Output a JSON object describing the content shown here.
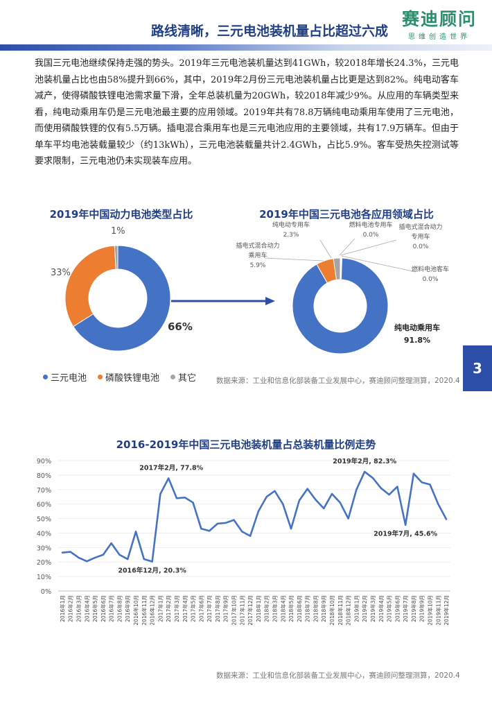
{
  "header": {
    "title": "路线清晰，三元电池装机量占比超过六成",
    "logo_main": "赛迪顾问",
    "logo_sub": "思维创造世界"
  },
  "intro_text": "我国三元电池继续保持走强的势头。2019年三元电池装机量达到41GWh，较2018年增长24.3%，三元电池装机量占比也由58%提升到66%，其中，2019年2月份三元电池装机量占比更是达到82%。纯电动客车减产，使得磷酸铁锂电池需求量下滑，全年总装机量为20GWh，较2018年减少9%。从应用的车辆类型来看，纯电动乘用车仍是三元电池最主要的应用领域。2019年共有78.8万辆纯电动乘用车使用了三元电池，而使用磷酸铁锂的仅有5.5万辆。插电混合乘用车也是三元电池应用的主要领域，共有17.9万辆车。但由于单车平均电池装载量较少（约13kWh），三元电池装载量共计2.4GWh，占比5.9%。客车受热失控测试等要求限制，三元电池仍未实现装车应用。",
  "page_number": "3",
  "colors": {
    "navy": "#1f3e86",
    "blue": "#4472c4",
    "orange": "#ed7d31",
    "gray": "#a5a5a5",
    "green": "#2a8f6b"
  },
  "source": "数据来源：工业和信息化部装备工业发展中心，赛迪顾问整理测算，2020.4",
  "chart_data": [
    {
      "type": "pie",
      "donut": true,
      "title": "2019年中国动力电池类型占比",
      "categories": [
        "三元电池",
        "磷酸铁锂电池",
        "其它"
      ],
      "values": [
        66,
        33,
        1
      ],
      "labels": [
        "66%",
        "33%",
        "1%"
      ],
      "colors": [
        "#4472c4",
        "#ed7d31",
        "#a5a5a5"
      ],
      "legend_position": "bottom"
    },
    {
      "type": "pie",
      "donut": true,
      "title": "2019年中国三元电池各应用领域占比",
      "categories": [
        "纯电动乘用车",
        "插电式混合动力乘用车",
        "纯电动专用车",
        "燃料电池专用车",
        "插电式混合动力专用车",
        "燃料电池客车"
      ],
      "values": [
        91.8,
        5.9,
        2.3,
        0.0,
        0.0,
        0.0
      ],
      "colors": [
        "#4472c4",
        "#ed7d31",
        "#a5a5a5",
        "#ffc000",
        "#5b9bd5",
        "#70ad47"
      ],
      "labels": {
        "main_name": "纯电动乘用车",
        "main_value": "91.8%",
        "phev_passenger_a": "插电式混合动力",
        "phev_passenger_b": "乘用车",
        "phev_passenger_value": "5.9%",
        "ev_special": "纯电动专用车",
        "ev_special_value": "2.3%",
        "fuel_special": "燃料电池专用车",
        "fuel_special_value": "0.0%",
        "phev_special_a": "插电式混合动力",
        "phev_special_b": "专用车",
        "phev_special_value": "0.0%",
        "fuel_bus": "燃料电池客车",
        "fuel_bus_value": "0.0%"
      }
    },
    {
      "type": "line",
      "title": "2016-2019年中国三元电池装机量占总装机量比例走势",
      "x": [
        "2016年1月",
        "2016年2月",
        "2016年3月",
        "2016年4月",
        "2016年5月",
        "2016年6月",
        "2016年7月",
        "2016年8月",
        "2016年9月",
        "2016年10月",
        "2016年11月",
        "2016年12月",
        "2017年1月",
        "2017年2月",
        "2017年3月",
        "2017年4月",
        "2017年5月",
        "2017年6月",
        "2017年7月",
        "2017年8月",
        "2017年9月",
        "2017年10月",
        "2017年11月",
        "2017年12月",
        "2018年1月",
        "2018年2月",
        "2018年3月",
        "2018年4月",
        "2018年5月",
        "2018年6月",
        "2018年7月",
        "2018年8月",
        "2018年9月",
        "2018年10月",
        "2018年11月",
        "2018年12月",
        "2019年1月",
        "2019年2月",
        "2019年3月",
        "2019年4月",
        "2019年5月",
        "2019年6月",
        "2019年7月",
        "2019年8月",
        "2019年9月",
        "2019年10月",
        "2019年11月",
        "2019年12月"
      ],
      "values": [
        26.5,
        27,
        23,
        20.5,
        23,
        25,
        33,
        25,
        22,
        41,
        22,
        20.3,
        67,
        77.8,
        64,
        64.5,
        61,
        43,
        41.5,
        46.5,
        47,
        49,
        41,
        38,
        55,
        65,
        69,
        60,
        43,
        62.5,
        70.5,
        63,
        57,
        67,
        61,
        50,
        70,
        82.3,
        78,
        71,
        66.5,
        72,
        45.6,
        81,
        75,
        73.5,
        60,
        49.5
      ],
      "yticks": [
        "0%",
        "10%",
        "20%",
        "30%",
        "40%",
        "50%",
        "60%",
        "70%",
        "80%",
        "90%"
      ],
      "ylim": [
        0,
        90
      ],
      "color": "#4472c4",
      "annotations": [
        {
          "index": 13,
          "text": "2017年2月, 77.8%"
        },
        {
          "index": 11,
          "text": "2016年12月, 20.3%"
        },
        {
          "index": 37,
          "text": "2019年2月, 82.3%"
        },
        {
          "index": 42,
          "text": "2019年7月, 45.6%"
        }
      ]
    }
  ]
}
